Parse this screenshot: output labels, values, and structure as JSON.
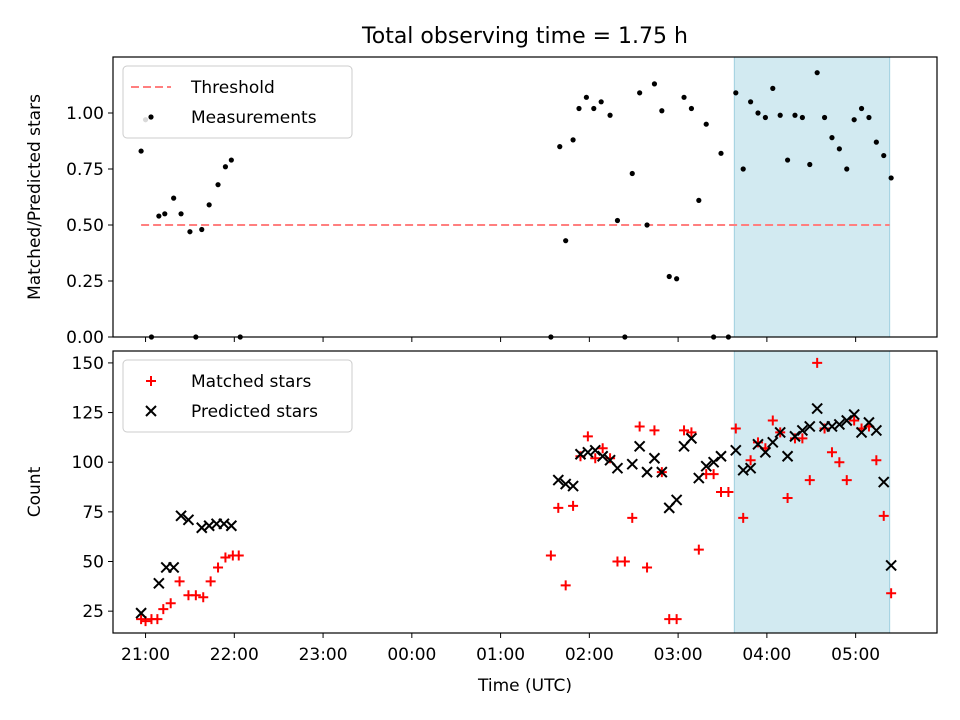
{
  "figure_title": "Total observing time = 1.75 h",
  "chart_data": [
    {
      "type": "scatter",
      "ylabel": "Matched/Predicted stars",
      "ylim": [
        0,
        1.25
      ],
      "yticks": [
        0,
        0.25,
        0.5,
        0.75,
        1.0
      ],
      "yticklabels": [
        "0.00",
        "0.25",
        "0.50",
        "0.75",
        "1.00"
      ],
      "xlim": [
        "20:38",
        "05:55"
      ],
      "legend_location": "upper-left",
      "highlight_span": {
        "from": "03:38",
        "to": "05:23",
        "color": "#add8e6"
      },
      "threshold": {
        "name": "Threshold",
        "value": 0.5,
        "from": "20:57",
        "to": "05:23",
        "color": "#ff7f7f"
      },
      "series": [
        {
          "name": "Measurements",
          "color": "#000000",
          "points": [
            [
              "20:57",
              0.83
            ],
            [
              "21:00",
              0.97
            ],
            [
              "21:04",
              0.0
            ],
            [
              "21:09",
              0.54
            ],
            [
              "21:13",
              0.55
            ],
            [
              "21:19",
              0.62
            ],
            [
              "21:24",
              0.55
            ],
            [
              "21:30",
              0.47
            ],
            [
              "21:34",
              0.0
            ],
            [
              "21:38",
              0.48
            ],
            [
              "21:43",
              0.59
            ],
            [
              "21:49",
              0.68
            ],
            [
              "21:54",
              0.76
            ],
            [
              "21:58",
              0.79
            ],
            [
              "22:04",
              0.0
            ],
            [
              "01:34",
              0.0
            ],
            [
              "01:40",
              0.85
            ],
            [
              "01:44",
              0.43
            ],
            [
              "01:49",
              0.88
            ],
            [
              "01:53",
              1.02
            ],
            [
              "01:58",
              1.07
            ],
            [
              "02:03",
              1.02
            ],
            [
              "02:08",
              1.05
            ],
            [
              "02:14",
              0.99
            ],
            [
              "02:19",
              0.52
            ],
            [
              "02:24",
              0.0
            ],
            [
              "02:29",
              0.73
            ],
            [
              "02:34",
              1.09
            ],
            [
              "02:39",
              0.5
            ],
            [
              "02:44",
              1.13
            ],
            [
              "02:49",
              1.01
            ],
            [
              "02:54",
              0.27
            ],
            [
              "02:59",
              0.26
            ],
            [
              "03:04",
              1.07
            ],
            [
              "03:09",
              1.02
            ],
            [
              "03:14",
              0.61
            ],
            [
              "03:19",
              0.95
            ],
            [
              "03:24",
              0.0
            ],
            [
              "03:29",
              0.82
            ],
            [
              "03:34",
              0.0
            ],
            [
              "03:39",
              1.09
            ],
            [
              "03:44",
              0.75
            ],
            [
              "03:49",
              1.05
            ],
            [
              "03:54",
              1.0
            ],
            [
              "03:59",
              0.98
            ],
            [
              "04:04",
              1.11
            ],
            [
              "04:09",
              0.99
            ],
            [
              "04:14",
              0.79
            ],
            [
              "04:19",
              0.99
            ],
            [
              "04:24",
              0.98
            ],
            [
              "04:29",
              0.77
            ],
            [
              "04:34",
              1.18
            ],
            [
              "04:39",
              0.98
            ],
            [
              "04:44",
              0.89
            ],
            [
              "04:49",
              0.84
            ],
            [
              "04:54",
              0.75
            ],
            [
              "04:59",
              0.97
            ],
            [
              "05:04",
              1.02
            ],
            [
              "05:09",
              0.98
            ],
            [
              "05:14",
              0.87
            ],
            [
              "05:19",
              0.81
            ],
            [
              "05:24",
              0.71
            ]
          ]
        }
      ]
    },
    {
      "type": "scatter",
      "xlabel": "Time (UTC)",
      "ylabel": "Count",
      "ylim": [
        14,
        156
      ],
      "yticks": [
        25,
        50,
        75,
        100,
        125,
        150
      ],
      "yticklabels": [
        "25",
        "50",
        "75",
        "100",
        "125",
        "150"
      ],
      "xlim": [
        "20:38",
        "05:55"
      ],
      "xticks": [
        "21:00",
        "22:00",
        "23:00",
        "00:00",
        "01:00",
        "02:00",
        "03:00",
        "04:00",
        "05:00"
      ],
      "xticklabels": [
        "21:00",
        "22:00",
        "23:00",
        "00:00",
        "01:00",
        "02:00",
        "03:00",
        "04:00",
        "05:00"
      ],
      "legend_location": "upper-left",
      "highlight_span": {
        "from": "03:38",
        "to": "05:23",
        "color": "#add8e6"
      },
      "series": [
        {
          "name": "Matched stars",
          "color": "#ff0000",
          "marker": "plus",
          "points": [
            [
              "20:57",
              21
            ],
            [
              "21:00",
              20
            ],
            [
              "21:04",
              21
            ],
            [
              "21:08",
              21
            ],
            [
              "21:12",
              26
            ],
            [
              "21:17",
              29
            ],
            [
              "21:23",
              40
            ],
            [
              "21:29",
              33
            ],
            [
              "21:34",
              33
            ],
            [
              "21:39",
              32
            ],
            [
              "21:44",
              40
            ],
            [
              "21:49",
              47
            ],
            [
              "21:54",
              52
            ],
            [
              "21:59",
              53
            ],
            [
              "22:03",
              53
            ],
            [
              "01:34",
              53
            ],
            [
              "01:39",
              77
            ],
            [
              "01:44",
              38
            ],
            [
              "01:49",
              78
            ],
            [
              "01:54",
              103
            ],
            [
              "01:59",
              113
            ],
            [
              "02:04",
              102
            ],
            [
              "02:09",
              107
            ],
            [
              "02:14",
              102
            ],
            [
              "02:19",
              50
            ],
            [
              "02:24",
              50
            ],
            [
              "02:29",
              72
            ],
            [
              "02:34",
              118
            ],
            [
              "02:39",
              47
            ],
            [
              "02:44",
              116
            ],
            [
              "02:49",
              95
            ],
            [
              "02:54",
              21
            ],
            [
              "02:59",
              21
            ],
            [
              "03:04",
              116
            ],
            [
              "03:09",
              115
            ],
            [
              "03:14",
              56
            ],
            [
              "03:19",
              94
            ],
            [
              "03:24",
              94
            ],
            [
              "03:29",
              85
            ],
            [
              "03:34",
              85
            ],
            [
              "03:39",
              117
            ],
            [
              "03:44",
              72
            ],
            [
              "03:49",
              101
            ],
            [
              "03:54",
              110
            ],
            [
              "03:59",
              107
            ],
            [
              "04:04",
              121
            ],
            [
              "04:09",
              115
            ],
            [
              "04:14",
              82
            ],
            [
              "04:19",
              112
            ],
            [
              "04:24",
              112
            ],
            [
              "04:29",
              91
            ],
            [
              "04:34",
              150
            ],
            [
              "04:39",
              117
            ],
            [
              "04:44",
              105
            ],
            [
              "04:49",
              100
            ],
            [
              "04:54",
              91
            ],
            [
              "04:59",
              121
            ],
            [
              "05:04",
              117
            ],
            [
              "05:09",
              118
            ],
            [
              "05:14",
              101
            ],
            [
              "05:19",
              73
            ],
            [
              "05:24",
              34
            ]
          ]
        },
        {
          "name": "Predicted stars",
          "color": "#000000",
          "marker": "x",
          "points": [
            [
              "20:57",
              24
            ],
            [
              "21:09",
              39
            ],
            [
              "21:14",
              47
            ],
            [
              "21:19",
              47
            ],
            [
              "21:24",
              73
            ],
            [
              "21:29",
              71
            ],
            [
              "21:38",
              67
            ],
            [
              "21:43",
              68
            ],
            [
              "21:48",
              69
            ],
            [
              "21:53",
              69
            ],
            [
              "21:58",
              68
            ],
            [
              "01:39",
              91
            ],
            [
              "01:44",
              89
            ],
            [
              "01:49",
              88
            ],
            [
              "01:54",
              104
            ],
            [
              "01:59",
              105
            ],
            [
              "02:04",
              106
            ],
            [
              "02:09",
              103
            ],
            [
              "02:14",
              101
            ],
            [
              "02:19",
              97
            ],
            [
              "02:29",
              99
            ],
            [
              "02:34",
              108
            ],
            [
              "02:39",
              95
            ],
            [
              "02:44",
              102
            ],
            [
              "02:49",
              95
            ],
            [
              "02:54",
              77
            ],
            [
              "02:59",
              81
            ],
            [
              "03:04",
              108
            ],
            [
              "03:09",
              112
            ],
            [
              "03:14",
              92
            ],
            [
              "03:19",
              98
            ],
            [
              "03:24",
              100
            ],
            [
              "03:29",
              103
            ],
            [
              "03:39",
              106
            ],
            [
              "03:44",
              96
            ],
            [
              "03:49",
              97
            ],
            [
              "03:54",
              109
            ],
            [
              "03:59",
              105
            ],
            [
              "04:04",
              110
            ],
            [
              "04:09",
              115
            ],
            [
              "04:14",
              103
            ],
            [
              "04:19",
              113
            ],
            [
              "04:24",
              116
            ],
            [
              "04:29",
              118
            ],
            [
              "04:34",
              127
            ],
            [
              "04:39",
              118
            ],
            [
              "04:44",
              118
            ],
            [
              "04:49",
              119
            ],
            [
              "04:54",
              121
            ],
            [
              "04:59",
              124
            ],
            [
              "05:04",
              115
            ],
            [
              "05:09",
              120
            ],
            [
              "05:14",
              116
            ],
            [
              "05:19",
              90
            ],
            [
              "05:24",
              48
            ]
          ]
        }
      ]
    }
  ]
}
